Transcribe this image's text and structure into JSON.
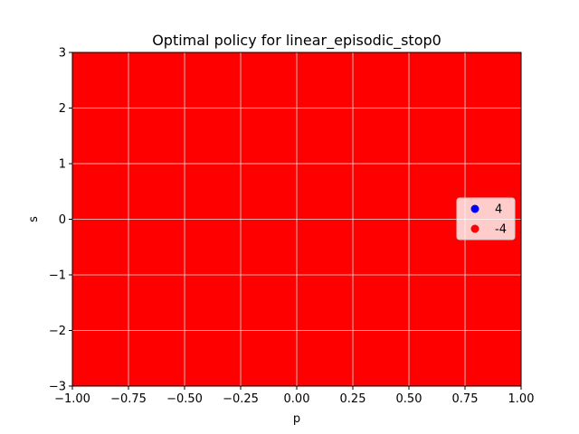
{
  "chart_data": {
    "type": "heatmap",
    "title": "Optimal policy for linear_episodic_stop0",
    "xlabel": "p",
    "ylabel": "s",
    "xlim": [
      -1.0,
      1.0
    ],
    "ylim": [
      -3,
      3
    ],
    "x_ticks": [
      -1.0,
      -0.75,
      -0.5,
      -0.25,
      0.0,
      0.25,
      0.5,
      0.75,
      1.0
    ],
    "x_tick_labels": [
      "−1.00",
      "−0.75",
      "−0.50",
      "−0.25",
      "0.00",
      "0.25",
      "0.50",
      "0.75",
      "1.00"
    ],
    "y_ticks": [
      -3,
      -2,
      -1,
      0,
      1,
      2,
      3
    ],
    "y_tick_labels": [
      "−3",
      "−2",
      "−1",
      "0",
      "1",
      "2",
      "3"
    ],
    "grid": true,
    "legend_position": "center-right",
    "series": [
      {
        "name": "4",
        "color": "#0000ff",
        "region": null
      },
      {
        "name": "-4",
        "color": "#ff0000",
        "region": {
          "x": [
            -1.0,
            1.0
          ],
          "y": [
            -3,
            3
          ]
        }
      }
    ]
  }
}
